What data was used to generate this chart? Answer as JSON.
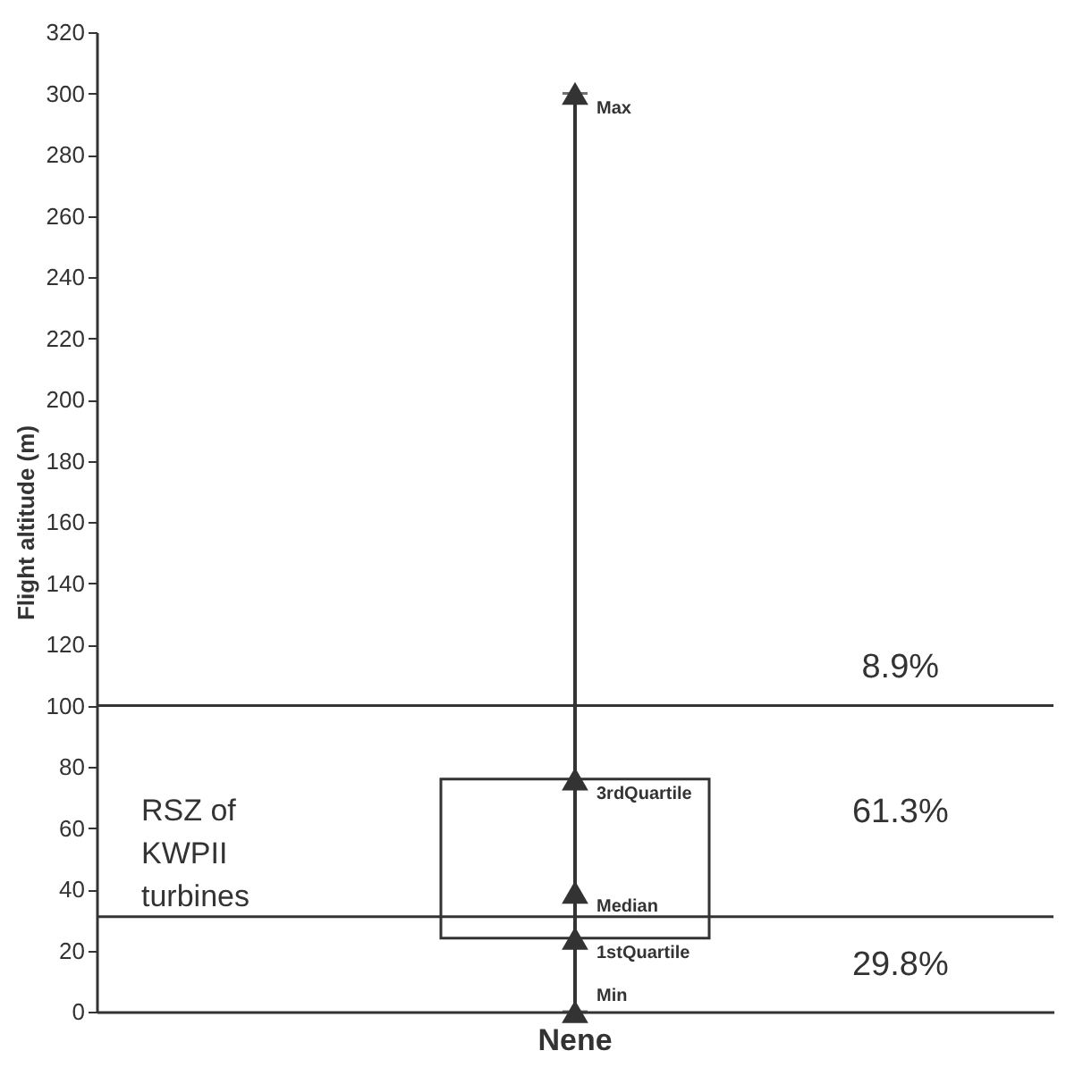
{
  "chart_data": {
    "type": "box",
    "ylabel": "Flight altitude (m)",
    "categories": [
      "Nene"
    ],
    "boxes": [
      {
        "low": 0,
        "q1": 24,
        "median": 39,
        "q3": 76,
        "high": 300
      }
    ],
    "series": [
      {
        "type": "scatter",
        "x": [
          "Nene",
          "Nene",
          "Nene",
          "Nene"
        ],
        "values": [
          0,
          24,
          76,
          300
        ],
        "color": "#333333"
      }
    ],
    "marker": "triangle",
    "ylim": [
      0,
      320
    ],
    "yticks": [
      0,
      20,
      40,
      60,
      80,
      100,
      120,
      140,
      160,
      180,
      200,
      220,
      240,
      260,
      280,
      300,
      320
    ],
    "ref_lines": [
      {
        "axis": "y",
        "value": 100
      },
      {
        "axis": "y",
        "value": 31
      }
    ],
    "annotations": [
      {
        "text": "Max",
        "x": "Nene",
        "y": 300
      },
      {
        "text": "3rdQuartile",
        "x": "Nene",
        "y": 76
      },
      {
        "text": "Median",
        "x": "Nene",
        "y": 39
      },
      {
        "text": "1stQuartile",
        "x": "Nene",
        "y": 24
      },
      {
        "text": "Min",
        "x": "Nene",
        "y": 0
      },
      "RSZ of\nKWPII\n turbines",
      "8.9%",
      "61.3%",
      "29.8%"
    ]
  }
}
